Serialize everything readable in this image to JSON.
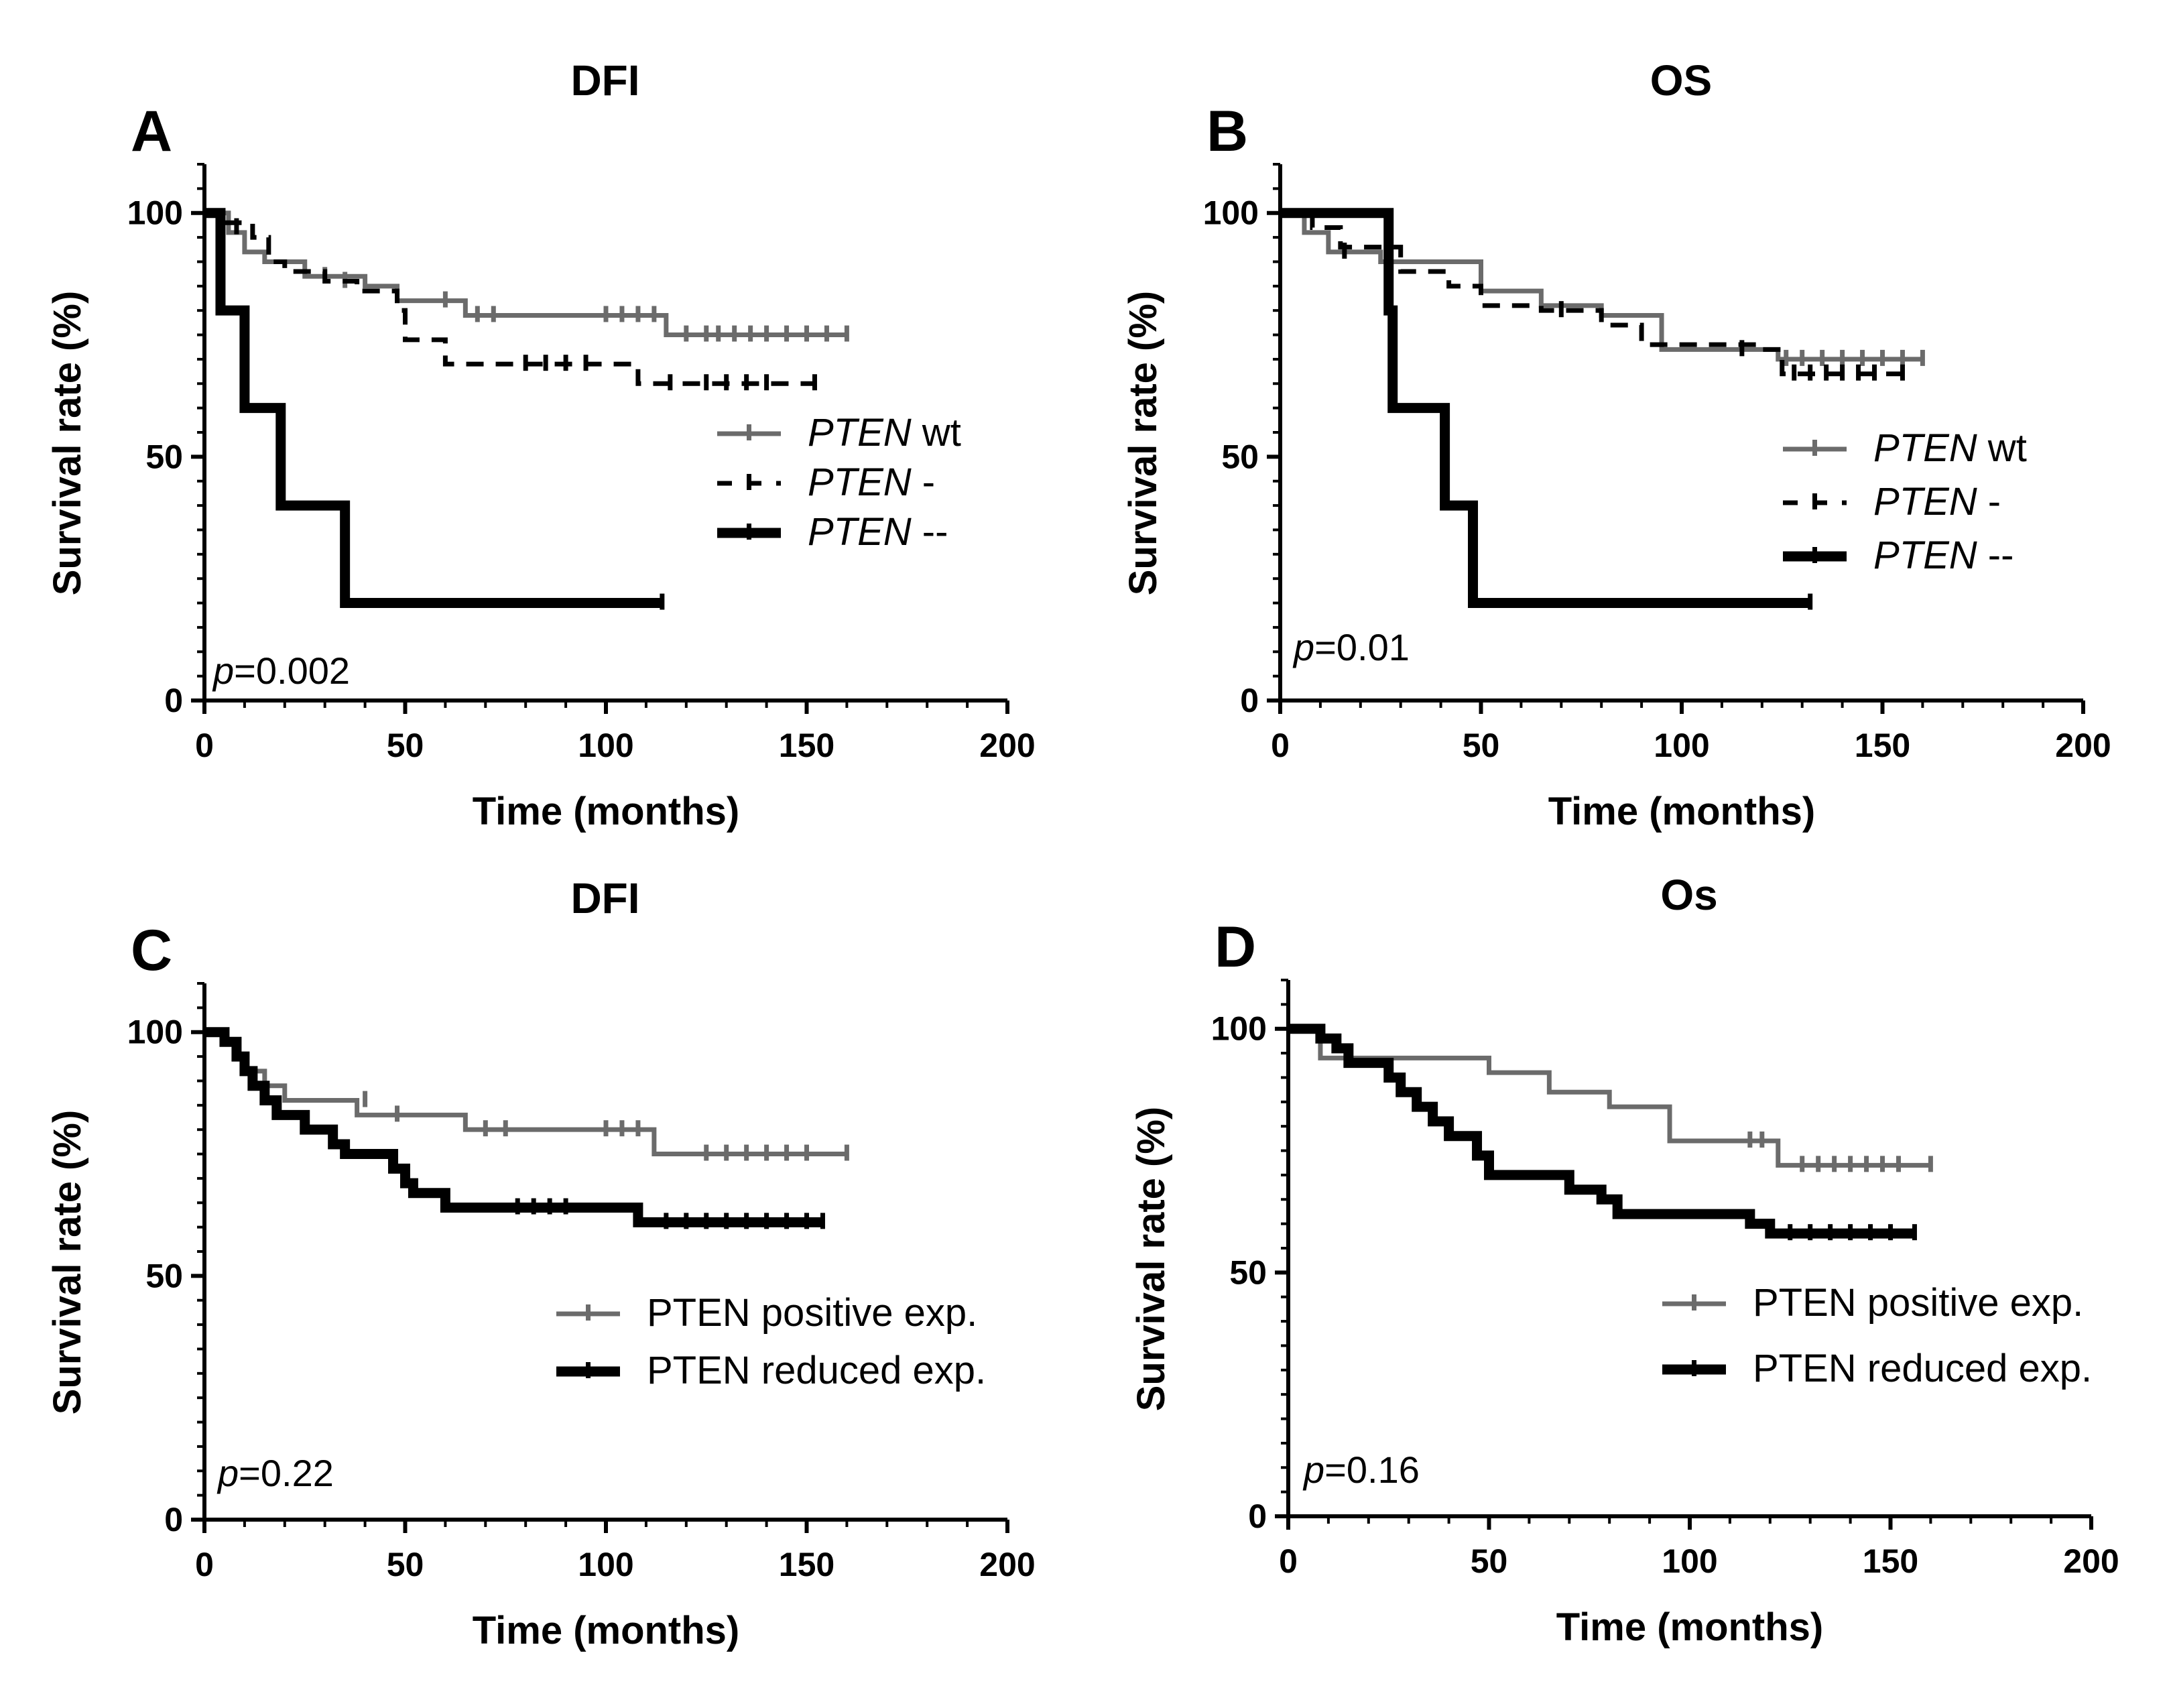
{
  "chart_data": [
    {
      "panel": "A",
      "title": "DFI",
      "type": "line",
      "xlabel": "Time (months)",
      "ylabel": "Survival rate (%)",
      "xlim": [
        0,
        200
      ],
      "ylim": [
        0,
        110
      ],
      "xticks": [
        0,
        50,
        100,
        150,
        200
      ],
      "yticks": [
        0,
        50,
        100
      ],
      "p_prefix": "p",
      "p_value": "=0.002",
      "legend": [
        {
          "italic": "PTEN",
          "suffix": " wt",
          "style": "gray"
        },
        {
          "italic": "PTEN",
          "suffix": " -",
          "style": "dashed"
        },
        {
          "italic": "PTEN",
          "suffix": " --",
          "style": "thick"
        }
      ],
      "series": [
        {
          "name": "PTEN wt",
          "style": "gray",
          "steps": [
            [
              0,
              100
            ],
            [
              6,
              96
            ],
            [
              10,
              92
            ],
            [
              15,
              90
            ],
            [
              25,
              87
            ],
            [
              40,
              85
            ],
            [
              48,
              82
            ],
            [
              65,
              79
            ],
            [
              115,
              75
            ],
            [
              160,
              75
            ]
          ],
          "censor": [
            [
              30,
              87
            ],
            [
              35,
              86
            ],
            [
              60,
              82
            ],
            [
              68,
              79
            ],
            [
              72,
              79
            ],
            [
              100,
              79
            ],
            [
              104,
              79
            ],
            [
              108,
              79
            ],
            [
              112,
              79
            ],
            [
              120,
              75
            ],
            [
              125,
              75
            ],
            [
              128,
              75
            ],
            [
              132,
              75
            ],
            [
              136,
              75
            ],
            [
              140,
              75
            ],
            [
              145,
              75
            ],
            [
              150,
              75
            ],
            [
              155,
              75
            ],
            [
              160,
              75
            ]
          ]
        },
        {
          "name": "PTEN -",
          "style": "dashed",
          "steps": [
            [
              0,
              100
            ],
            [
              5,
              98
            ],
            [
              12,
              95
            ],
            [
              16,
              90
            ],
            [
              20,
              88
            ],
            [
              30,
              86
            ],
            [
              38,
              84
            ],
            [
              48,
              80
            ],
            [
              50,
              74
            ],
            [
              60,
              69
            ],
            [
              108,
              65
            ],
            [
              152,
              65
            ]
          ],
          "censor": [
            [
              8,
              97
            ],
            [
              80,
              69
            ],
            [
              85,
              69
            ],
            [
              90,
              69
            ],
            [
              95,
              69
            ],
            [
              116,
              65
            ],
            [
              125,
              65
            ],
            [
              130,
              65
            ],
            [
              135,
              65
            ],
            [
              140,
              65
            ],
            [
              152,
              65
            ]
          ]
        },
        {
          "name": "PTEN --",
          "style": "thick",
          "steps": [
            [
              0,
              100
            ],
            [
              4,
              80
            ],
            [
              10,
              60
            ],
            [
              19,
              40
            ],
            [
              35,
              20
            ],
            [
              114,
              20
            ]
          ],
          "censor": [
            [
              114,
              20
            ]
          ]
        }
      ]
    },
    {
      "panel": "B",
      "title": "OS",
      "type": "line",
      "xlabel": "Time (months)",
      "ylabel": "Survival rate (%)",
      "xlim": [
        0,
        200
      ],
      "ylim": [
        0,
        110
      ],
      "xticks": [
        0,
        50,
        100,
        150,
        200
      ],
      "yticks": [
        0,
        50,
        100
      ],
      "p_prefix": "p",
      "p_value": "=0.01",
      "legend": [
        {
          "italic": "PTEN",
          "suffix": " wt",
          "style": "gray"
        },
        {
          "italic": "PTEN",
          "suffix": " -",
          "style": "dashed"
        },
        {
          "italic": "PTEN",
          "suffix": " --",
          "style": "thick"
        }
      ],
      "series": [
        {
          "name": "PTEN wt",
          "style": "gray",
          "steps": [
            [
              0,
              100
            ],
            [
              6,
              96
            ],
            [
              12,
              92
            ],
            [
              25,
              90
            ],
            [
              50,
              84
            ],
            [
              65,
              81
            ],
            [
              80,
              79
            ],
            [
              95,
              72
            ],
            [
              124,
              70
            ],
            [
              160,
              70
            ]
          ],
          "censor": [
            [
              126,
              70
            ],
            [
              130,
              70
            ],
            [
              135,
              70
            ],
            [
              140,
              70
            ],
            [
              145,
              70
            ],
            [
              150,
              70
            ],
            [
              155,
              70
            ],
            [
              160,
              70
            ]
          ]
        },
        {
          "name": "PTEN -",
          "style": "dashed",
          "steps": [
            [
              0,
              100
            ],
            [
              8,
              97
            ],
            [
              15,
              93
            ],
            [
              30,
              88
            ],
            [
              42,
              85
            ],
            [
              50,
              81
            ],
            [
              65,
              80
            ],
            [
              80,
              77
            ],
            [
              90,
              73
            ],
            [
              120,
              72
            ],
            [
              125,
              67
            ],
            [
              155,
              67
            ]
          ],
          "censor": [
            [
              16,
              92
            ],
            [
              70,
              80
            ],
            [
              115,
              72
            ],
            [
              128,
              67
            ],
            [
              132,
              67
            ],
            [
              136,
              67
            ],
            [
              140,
              67
            ],
            [
              144,
              67
            ],
            [
              148,
              67
            ],
            [
              155,
              67
            ]
          ]
        },
        {
          "name": "PTEN --",
          "style": "thick",
          "steps": [
            [
              0,
              100
            ],
            [
              27,
              80
            ],
            [
              28,
              60
            ],
            [
              41,
              40
            ],
            [
              48,
              20
            ],
            [
              132,
              20
            ]
          ],
          "censor": [
            [
              132,
              20
            ]
          ]
        }
      ]
    },
    {
      "panel": "C",
      "title": "DFI",
      "type": "line",
      "xlabel": "Time (months)",
      "ylabel": "Survival rate (%)",
      "xlim": [
        0,
        200
      ],
      "ylim": [
        0,
        110
      ],
      "xticks": [
        0,
        50,
        100,
        150,
        200
      ],
      "yticks": [
        0,
        50,
        100
      ],
      "p_prefix": "p",
      "p_value": "=0.22",
      "legend": [
        {
          "italic": "",
          "suffix": "PTEN positive exp.",
          "style": "gray"
        },
        {
          "italic": "",
          "suffix": "PTEN reduced exp.",
          "style": "thick"
        }
      ],
      "series": [
        {
          "name": "PTEN positive exp.",
          "style": "gray",
          "steps": [
            [
              0,
              100
            ],
            [
              5,
              98
            ],
            [
              8,
              95
            ],
            [
              10,
              92
            ],
            [
              15,
              89
            ],
            [
              20,
              86
            ],
            [
              38,
              83
            ],
            [
              65,
              80
            ],
            [
              112,
              75
            ],
            [
              160,
              75
            ]
          ],
          "censor": [
            [
              40,
              86
            ],
            [
              48,
              83
            ],
            [
              70,
              80
            ],
            [
              75,
              80
            ],
            [
              100,
              80
            ],
            [
              104,
              80
            ],
            [
              108,
              80
            ],
            [
              125,
              75
            ],
            [
              130,
              75
            ],
            [
              135,
              75
            ],
            [
              140,
              75
            ],
            [
              145,
              75
            ],
            [
              150,
              75
            ],
            [
              160,
              75
            ]
          ]
        },
        {
          "name": "PTEN reduced exp.",
          "style": "thick",
          "steps": [
            [
              0,
              100
            ],
            [
              5,
              98
            ],
            [
              8,
              95
            ],
            [
              10,
              92
            ],
            [
              12,
              89
            ],
            [
              15,
              86
            ],
            [
              18,
              83
            ],
            [
              25,
              80
            ],
            [
              32,
              77
            ],
            [
              35,
              75
            ],
            [
              47,
              72
            ],
            [
              50,
              69
            ],
            [
              52,
              67
            ],
            [
              60,
              64
            ],
            [
              108,
              61
            ],
            [
              154,
              61
            ]
          ],
          "censor": [
            [
              78,
              64
            ],
            [
              82,
              64
            ],
            [
              86,
              64
            ],
            [
              90,
              64
            ],
            [
              115,
              61
            ],
            [
              120,
              61
            ],
            [
              125,
              61
            ],
            [
              130,
              61
            ],
            [
              135,
              61
            ],
            [
              140,
              61
            ],
            [
              145,
              61
            ],
            [
              150,
              61
            ],
            [
              154,
              61
            ]
          ]
        }
      ]
    },
    {
      "panel": "D",
      "title": "Os",
      "type": "line",
      "xlabel": "Time (months)",
      "ylabel": "Survival rate (%)",
      "xlim": [
        0,
        200
      ],
      "ylim": [
        0,
        110
      ],
      "xticks": [
        0,
        50,
        100,
        150,
        200
      ],
      "yticks": [
        0,
        50,
        100
      ],
      "p_prefix": "p",
      "p_value": "=0.16",
      "legend": [
        {
          "italic": "",
          "suffix": "PTEN positive exp.",
          "style": "gray"
        },
        {
          "italic": "",
          "suffix": "PTEN reduced exp.",
          "style": "thick"
        }
      ],
      "series": [
        {
          "name": "PTEN positive exp.",
          "style": "gray",
          "steps": [
            [
              0,
              100
            ],
            [
              8,
              94
            ],
            [
              50,
              91
            ],
            [
              65,
              87
            ],
            [
              80,
              84
            ],
            [
              95,
              77
            ],
            [
              122,
              72
            ],
            [
              160,
              72
            ]
          ],
          "censor": [
            [
              115,
              77
            ],
            [
              118,
              77
            ],
            [
              128,
              72
            ],
            [
              132,
              72
            ],
            [
              136,
              72
            ],
            [
              140,
              72
            ],
            [
              144,
              72
            ],
            [
              148,
              72
            ],
            [
              152,
              72
            ],
            [
              160,
              72
            ]
          ]
        },
        {
          "name": "PTEN reduced exp.",
          "style": "thick",
          "steps": [
            [
              0,
              100
            ],
            [
              8,
              98
            ],
            [
              12,
              96
            ],
            [
              15,
              93
            ],
            [
              25,
              90
            ],
            [
              28,
              87
            ],
            [
              32,
              84
            ],
            [
              36,
              81
            ],
            [
              40,
              78
            ],
            [
              47,
              74
            ],
            [
              50,
              70
            ],
            [
              70,
              67
            ],
            [
              78,
              65
            ],
            [
              82,
              62
            ],
            [
              115,
              60
            ],
            [
              120,
              58
            ],
            [
              156,
              58
            ]
          ],
          "censor": [
            [
              125,
              58
            ],
            [
              130,
              58
            ],
            [
              135,
              58
            ],
            [
              140,
              58
            ],
            [
              145,
              58
            ],
            [
              150,
              58
            ],
            [
              156,
              58
            ]
          ]
        }
      ]
    }
  ]
}
